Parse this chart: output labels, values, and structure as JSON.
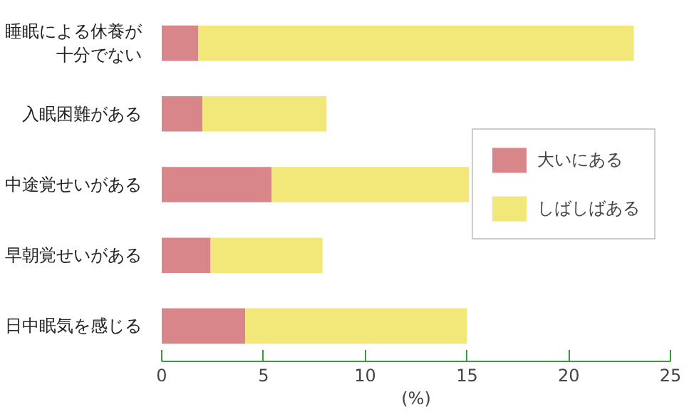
{
  "chart_data": {
    "type": "bar",
    "orientation": "horizontal",
    "stacked": true,
    "categories": [
      "睡眠による休養が十分でない",
      "入眠困難がある",
      "中途覚せいがある",
      "早朝覚せいがある",
      "日中眠気を感じる"
    ],
    "series": [
      {
        "name": "大いにある",
        "color": "#d9868a",
        "values": [
          1.8,
          2.0,
          5.4,
          2.4,
          4.1
        ]
      },
      {
        "name": "しばしばある",
        "color": "#f2e87a",
        "values": [
          21.4,
          6.1,
          9.7,
          5.5,
          10.9
        ]
      }
    ],
    "xlabel": "(%)",
    "xlim": [
      0,
      25
    ],
    "xticks": [
      0,
      5,
      10,
      15,
      20,
      25
    ],
    "grid": false,
    "legend": "right"
  }
}
